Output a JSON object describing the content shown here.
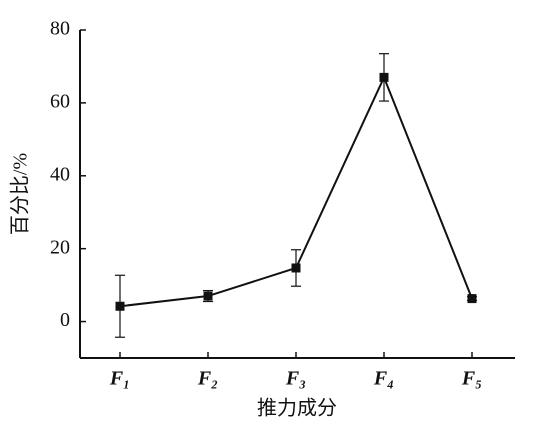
{
  "chart_data": {
    "type": "line",
    "xlabel": "推力成分",
    "ylabel": "百分比/%",
    "categories": [
      "F₁",
      "F₂",
      "F₃",
      "F₄",
      "F₅"
    ],
    "series": [
      {
        "color": "#111111",
        "values": [
          4.2,
          7,
          14.7,
          67,
          6.3
        ],
        "errors": [
          8.5,
          1.5,
          5,
          6.5,
          0.5
        ]
      }
    ],
    "ylim": [
      -10,
      80
    ],
    "yticks": [
      0,
      20,
      40,
      60,
      80
    ]
  }
}
